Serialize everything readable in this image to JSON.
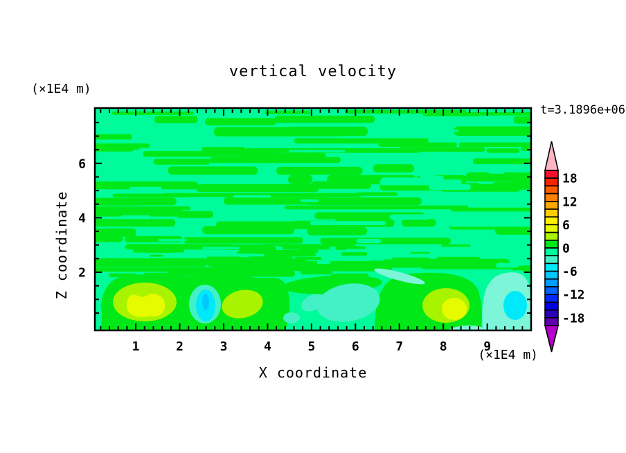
{
  "title": "vertical velocity",
  "timestamp": "t=3.1896e+06",
  "x_axis": {
    "label": "X coordinate",
    "unit": "(×1E4 m)",
    "major_ticks": [
      "1",
      "2",
      "3",
      "4",
      "5",
      "6",
      "7",
      "8",
      "9"
    ],
    "major_tick_values": [
      1,
      2,
      3,
      4,
      5,
      6,
      7,
      8,
      9
    ],
    "minor_tick_interval": 0.2,
    "range": [
      0,
      10
    ]
  },
  "y_axis": {
    "label": "Z coordinate",
    "unit": "(×1E4 m)",
    "major_ticks": [
      "2",
      "4",
      "6"
    ],
    "major_tick_values": [
      2,
      4,
      6
    ],
    "minor_tick_interval": 0.5,
    "range": [
      0,
      7.9
    ]
  },
  "colorbar": {
    "tick_labels": [
      "18",
      "12",
      "6",
      "0",
      "-6",
      "-12",
      "-18"
    ],
    "tick_values": [
      18,
      12,
      6,
      0,
      -6,
      -12,
      -18
    ],
    "interval": 2,
    "range": [
      -20,
      20
    ],
    "segment_colors": [
      "#f6102e",
      "#fb2400",
      "#ff5a00",
      "#ff8200",
      "#ffa800",
      "#ffcd00",
      "#fff400",
      "#e6fb00",
      "#a8f400",
      "#00e818",
      "#00fb9b",
      "#44f0c6",
      "#00e9fb",
      "#00c8fc",
      "#009cff",
      "#0064ff",
      "#0028ff",
      "#0000e0",
      "#2a00b8",
      "#6000b0"
    ],
    "over_color": "#ffb4c4",
    "under_color": "#b400c8"
  },
  "field_colors": {
    "background": "#00fb9b",
    "streak": "#00e818",
    "chartreuse": "#a8f400",
    "yellow": "#e6fb00",
    "aqua": "#44f0c6",
    "aqua_light": "#7df5d8",
    "cyan": "#00e9fb",
    "cyan_deep": "#00c8fc"
  },
  "chart_data": {
    "type": "heatmap",
    "title": "vertical velocity",
    "xlabel": "X coordinate",
    "ylabel": "Z coordinate",
    "x_unit": "×1E4 m",
    "y_unit": "×1E4 m",
    "xlim": [
      0,
      10
    ],
    "ylim": [
      0,
      7.9
    ],
    "time_label": "t=3.1896e+06",
    "colorbar_ticks": [
      18,
      12,
      6,
      0,
      -6,
      -12,
      -18
    ],
    "contour_interval": 2,
    "value_range": [
      -20,
      20
    ],
    "dominant_band": "-2 to 0 (spring green background)",
    "streak_band": "0 to 2 (green horizontal wave streaks through upper region)",
    "features": [
      {
        "x": 1.2,
        "z": 0.9,
        "extent_x": 1.7,
        "peak_band": "4 to 6",
        "description": "updraft cell, chartreuse ring with yellow double-lobed core"
      },
      {
        "x": 2.6,
        "z": 0.8,
        "extent_x": 0.7,
        "peak_band": "-8 to -6",
        "description": "downdraft cell, turquoise ring with cyan core"
      },
      {
        "x": 3.4,
        "z": 0.85,
        "extent_x": 1.0,
        "peak_band": "2 to 4",
        "description": "weak updraft, chartreuse oval in green band"
      },
      {
        "x": 5.8,
        "z": 0.85,
        "extent_x": 1.5,
        "peak_band": "-4 to -2",
        "description": "weak downdraft, uniform turquoise patch"
      },
      {
        "x": 8.1,
        "z": 0.8,
        "extent_x": 1.1,
        "peak_band": "4 to 6",
        "description": "updraft cell, chartreuse ring with yellow core"
      },
      {
        "x": 9.6,
        "z": 0.8,
        "extent_x": 0.9,
        "peak_band": "-8 to -6",
        "description": "downdraft cell at right edge, pale aqua ring with cyan core"
      },
      {
        "x": 5.0,
        "z": 4.5,
        "peak_band": "-2 to 2",
        "description": "upper two-thirds: fine alternating horizontal wave streaks between the 0-2 and -2-0 bands"
      }
    ],
    "legend_position": "right vertical colorbar with over/under triangle caps",
    "grid": false
  }
}
